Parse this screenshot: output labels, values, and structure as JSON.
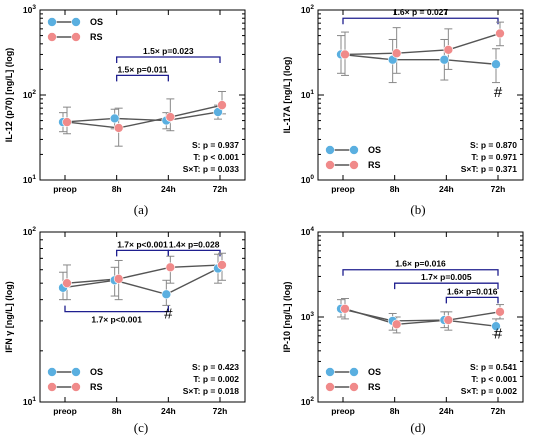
{
  "colors": {
    "OS": "#5aafe0",
    "RS": "#f08a8a",
    "line": "#555555",
    "bracket": "#1f1f8f",
    "axis": "#000000"
  },
  "chart_data": [
    {
      "type": "line",
      "panel_label": "(a)",
      "ylabel": "IL-12 (p70) [ng/L] (log)",
      "yscale": "log",
      "ylim": [
        10,
        1000
      ],
      "y_ticks": [
        10,
        100,
        1000
      ],
      "y_tick_labels": [
        [
          "10",
          "1"
        ],
        [
          "10",
          "2"
        ],
        [
          "10",
          "3"
        ]
      ],
      "categories": [
        "preop",
        "8h",
        "24h",
        "72h"
      ],
      "legend": {
        "placement": "top-left",
        "entries": [
          "OS",
          "RS"
        ]
      },
      "stats": {
        "placement": "bottom-right",
        "lines": [
          "S: p = 0.937",
          "T: p < 0.001",
          "S×T: p = 0.033"
        ]
      },
      "series": [
        {
          "name": "OS",
          "values": [
            48,
            53,
            50,
            63
          ],
          "err_low": [
            37,
            40,
            40,
            52
          ],
          "err_high": [
            62,
            68,
            62,
            76
          ]
        },
        {
          "name": "RS",
          "values": [
            48,
            41,
            55,
            76
          ],
          "err_low": [
            35,
            25,
            38,
            60
          ],
          "err_high": [
            72,
            70,
            90,
            110
          ]
        }
      ],
      "brackets": [
        {
          "from": "8h",
          "to": "72h",
          "y": 280,
          "text": "1.5×  p=0.023"
        },
        {
          "from": "8h",
          "to": "24h",
          "y": 170,
          "text": "1.5×  p=0.011"
        }
      ],
      "markers": []
    },
    {
      "type": "line",
      "panel_label": "(b)",
      "ylabel": "IL-17A [ng/L] (log)",
      "yscale": "log",
      "ylim": [
        1,
        100
      ],
      "y_ticks": [
        1,
        10,
        100
      ],
      "y_tick_labels": [
        [
          "10",
          "0"
        ],
        [
          "10",
          "1"
        ],
        [
          "10",
          "2"
        ]
      ],
      "categories": [
        "preop",
        "8h",
        "24h",
        "72h"
      ],
      "legend": {
        "placement": "bottom-left",
        "entries": [
          "OS",
          "RS"
        ]
      },
      "stats": {
        "placement": "bottom-right",
        "lines": [
          "S: p = 0.870",
          "T: p = 0.971",
          "S×T: p = 0.371"
        ]
      },
      "series": [
        {
          "name": "OS",
          "values": [
            30,
            26,
            26,
            23
          ],
          "err_low": [
            18,
            14,
            15,
            14
          ],
          "err_high": [
            50,
            45,
            45,
            35
          ]
        },
        {
          "name": "RS",
          "values": [
            30,
            31,
            34,
            53
          ],
          "err_low": [
            17,
            18,
            20,
            38
          ],
          "err_high": [
            55,
            62,
            60,
            72
          ]
        }
      ],
      "brackets": [
        {
          "from": "preop",
          "to": "72h",
          "y": 80,
          "text": "1.6×  p = 0.027"
        }
      ],
      "markers": [
        {
          "at": "72h",
          "y": 9.5,
          "text": "#"
        }
      ]
    },
    {
      "type": "line",
      "panel_label": "(c)",
      "ylabel": "IFN γ [ng/L] (log)",
      "yscale": "log",
      "ylim": [
        10,
        100
      ],
      "y_ticks": [
        10,
        100
      ],
      "y_tick_labels": [
        [
          "10",
          "1"
        ],
        [
          "10",
          "2"
        ]
      ],
      "categories": [
        "preop",
        "8h",
        "24h",
        "72h"
      ],
      "legend": {
        "placement": "bottom-left",
        "entries": [
          "OS",
          "RS"
        ]
      },
      "stats": {
        "placement": "bottom-right",
        "lines": [
          "S: p = 0.423",
          "T: p = 0.002",
          "S×T: p = 0.018"
        ]
      },
      "series": [
        {
          "name": "OS",
          "values": [
            47,
            52,
            43,
            61
          ],
          "err_low": [
            40,
            42,
            37,
            50
          ],
          "err_high": [
            58,
            62,
            52,
            74
          ]
        },
        {
          "name": "RS",
          "values": [
            50,
            53,
            62,
            64
          ],
          "err_low": [
            40,
            40,
            50,
            52
          ],
          "err_high": [
            64,
            68,
            72,
            75
          ]
        }
      ],
      "brackets": [
        {
          "from": "8h",
          "to": "24h",
          "y": 78,
          "text": "1.7×  p<0.001"
        },
        {
          "from": "24h",
          "to": "72h",
          "y": 78,
          "text": "1.4×  p=0.028"
        },
        {
          "from": "preop",
          "to": "24h",
          "y": 34,
          "text": "1.7×  p<0.001",
          "direction": "down"
        }
      ],
      "markers": [
        {
          "at": "24h",
          "y": 31,
          "text": "#"
        }
      ]
    },
    {
      "type": "line",
      "panel_label": "(d)",
      "ylabel": "IP-10 [ng/L] (log)",
      "yscale": "log",
      "ylim": [
        100,
        10000
      ],
      "y_ticks": [
        100,
        1000,
        10000
      ],
      "y_tick_labels": [
        [
          "10",
          "2"
        ],
        [
          "10",
          "3"
        ],
        [
          "10",
          "4"
        ]
      ],
      "categories": [
        "preop",
        "8h",
        "24h",
        "72h"
      ],
      "legend": {
        "placement": "bottom-left",
        "entries": [
          "OS",
          "RS"
        ]
      },
      "stats": {
        "placement": "bottom-right",
        "lines": [
          "S: p = 0.541",
          "T: p < 0.001",
          "S×T: p = 0.002"
        ]
      },
      "series": [
        {
          "name": "OS",
          "values": [
            1250,
            900,
            920,
            780
          ],
          "err_low": [
            1000,
            700,
            750,
            620
          ],
          "err_high": [
            1600,
            1100,
            1150,
            950
          ]
        },
        {
          "name": "RS",
          "values": [
            1250,
            820,
            920,
            1150
          ],
          "err_low": [
            950,
            650,
            700,
            950
          ],
          "err_high": [
            1650,
            1000,
            1150,
            1400
          ]
        }
      ],
      "brackets": [
        {
          "from": "preop",
          "to": "72h",
          "y": 3600,
          "text": "1.6×  p=0.016"
        },
        {
          "from": "8h",
          "to": "72h",
          "y": 2500,
          "text": "1.7×  p=0.005"
        },
        {
          "from": "24h",
          "to": "72h",
          "y": 1700,
          "text": "1.6×  p=0.016"
        }
      ],
      "markers": [
        {
          "at": "72h",
          "y": 560,
          "text": "#"
        }
      ]
    }
  ]
}
